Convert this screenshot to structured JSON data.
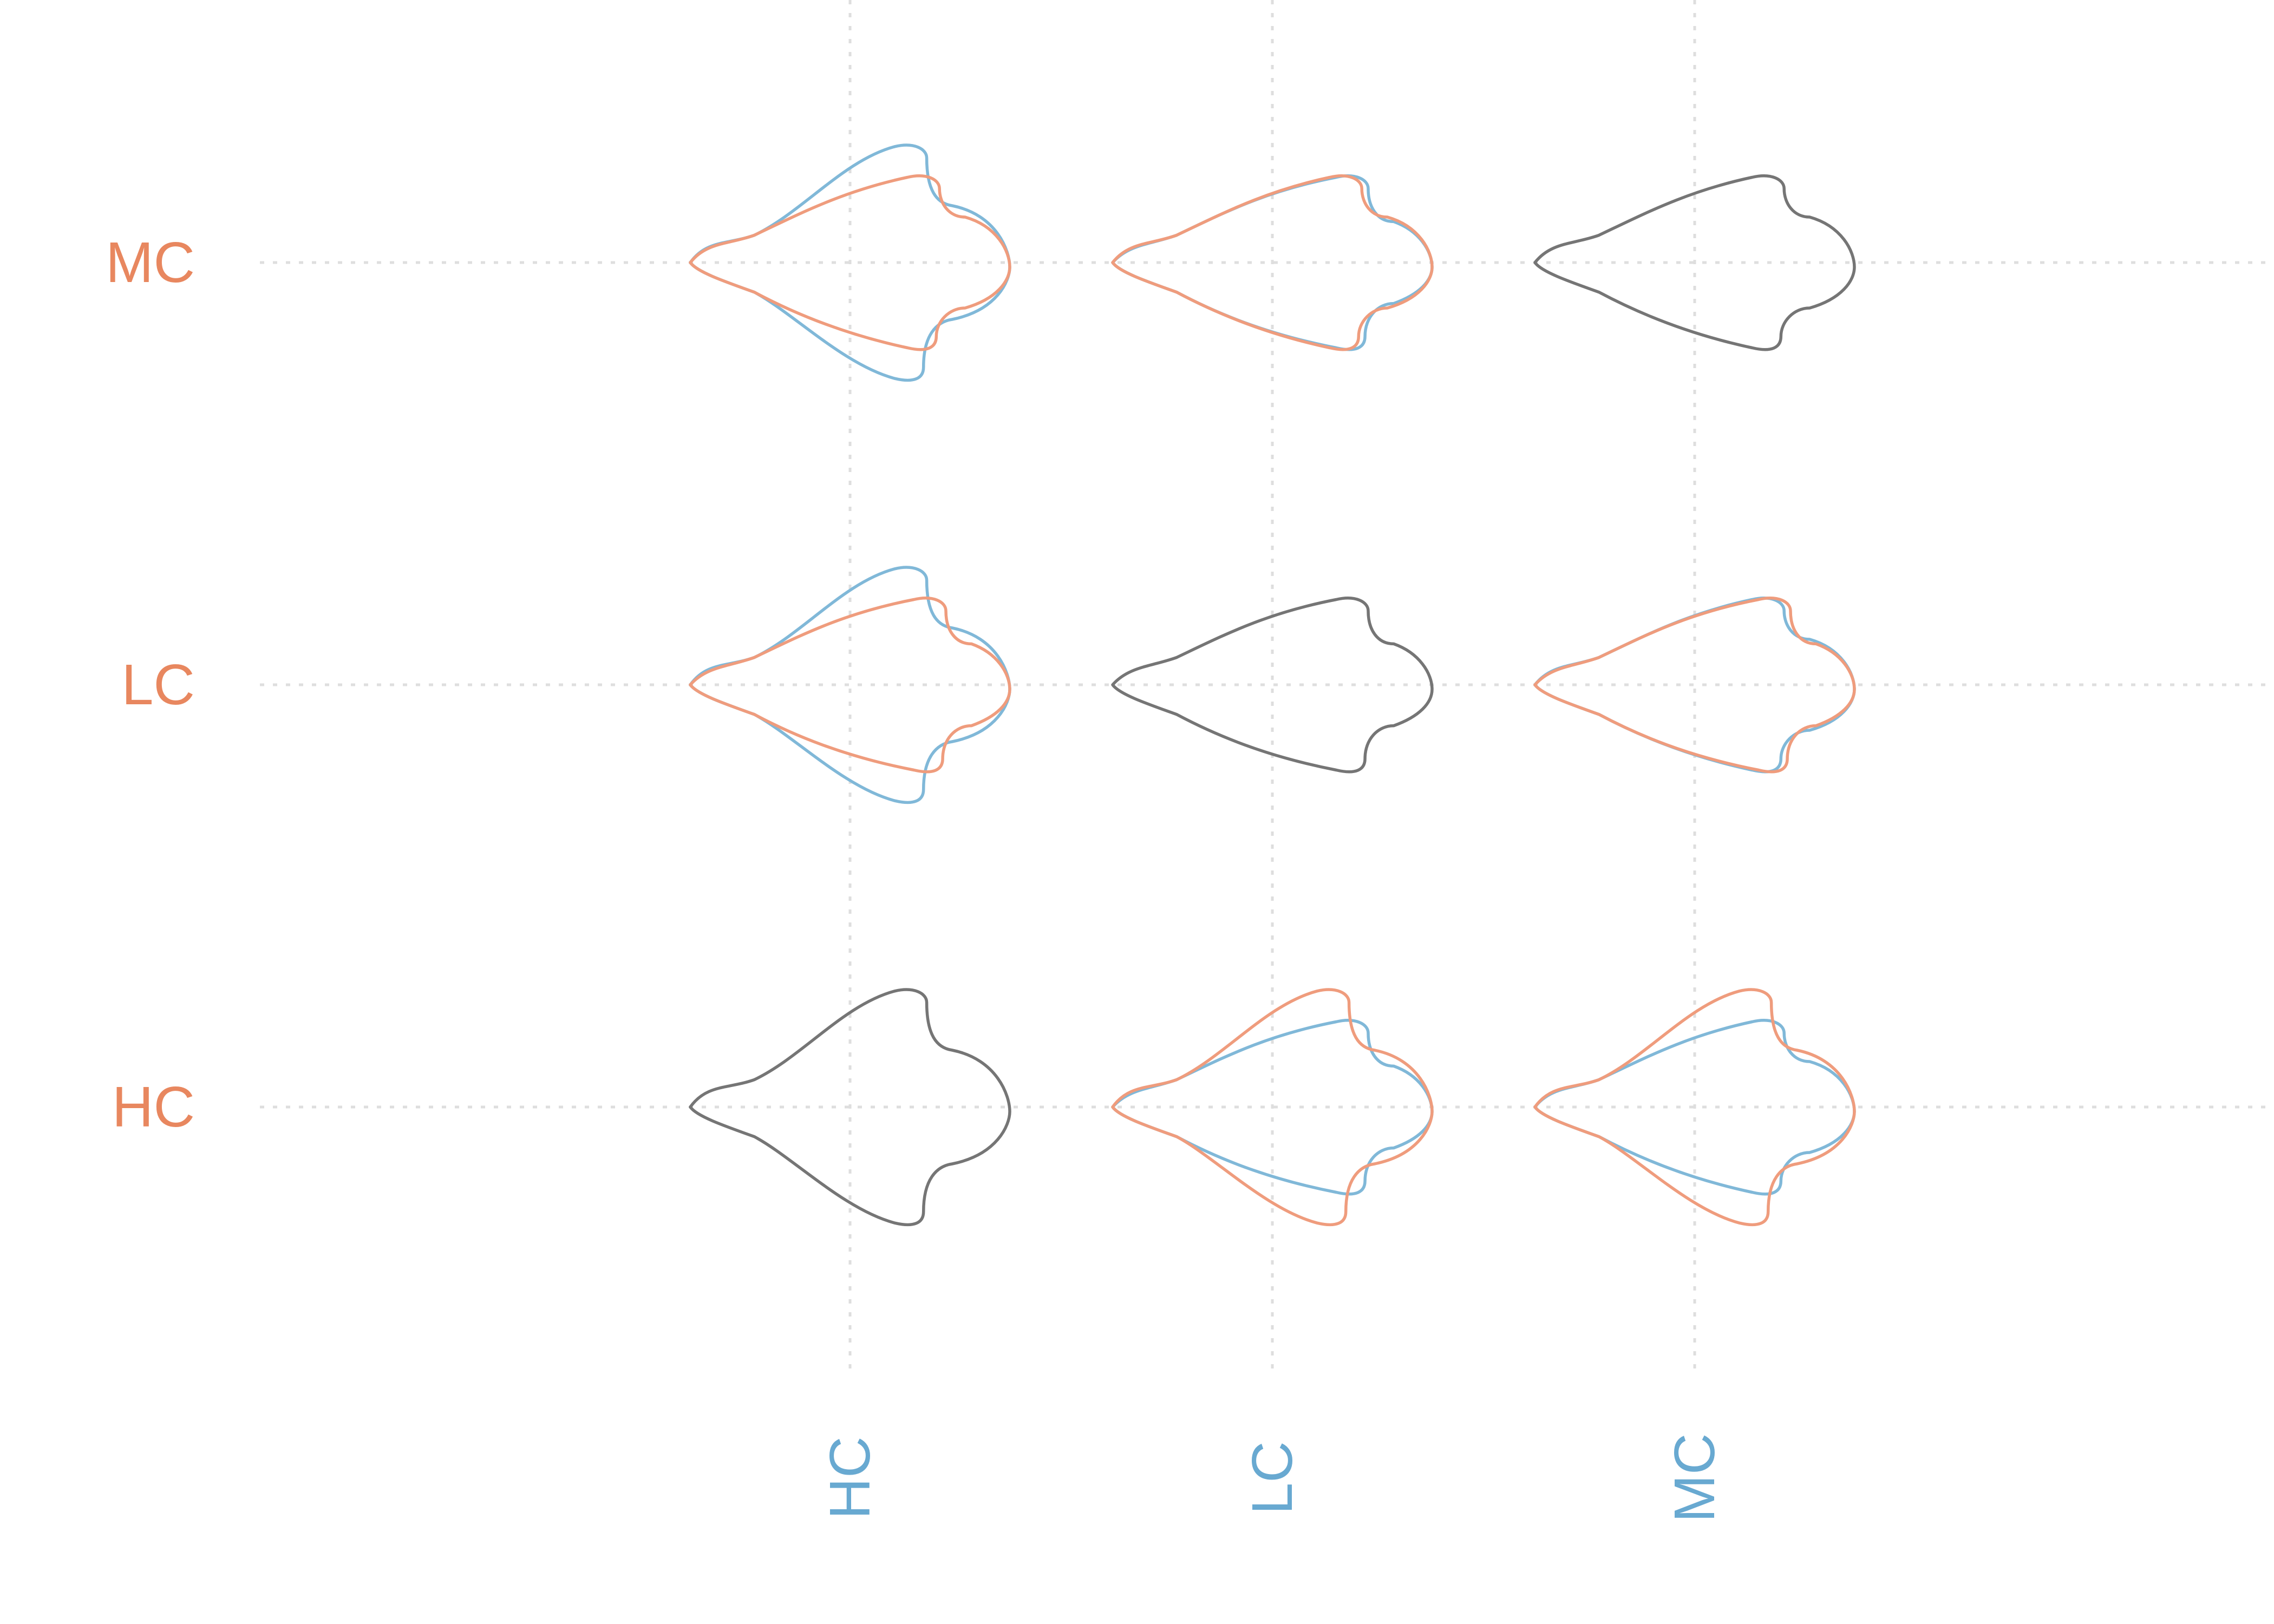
{
  "chart_data": {
    "type": "scatter",
    "description_free": true,
    "title": "",
    "xlabel": "",
    "ylabel": "",
    "x_categories": [
      "HC",
      "LC",
      "MC"
    ],
    "y_categories": [
      "HC",
      "LC",
      "MC"
    ],
    "grid": true,
    "colors": {
      "row_label": "#e8875f",
      "col_label": "#68a9d1",
      "mean_shape": "#757575",
      "row_group_outline": "#ef9c7d",
      "col_group_outline": "#80b8d8",
      "grid": "#dedede"
    },
    "shapes": {
      "HC": {
        "width": 1.0,
        "tail_len": 0.48,
        "shoulder_h": 0.68,
        "notch_x": 0.72,
        "notch_h": 0.28,
        "base_h": 0.25,
        "tip_bulge": 0.05
      },
      "LC": {
        "width": 1.0,
        "tail_len": 0.55,
        "shoulder_h": 0.5,
        "notch_x": 0.78,
        "notch_h": 0.2,
        "base_h": 0.18,
        "tip_bulge": 0.03
      },
      "MC": {
        "width": 1.0,
        "tail_len": 0.55,
        "shoulder_h": 0.5,
        "notch_x": 0.76,
        "notch_h": 0.22,
        "base_h": 0.2,
        "tip_bulge": 0.04
      }
    },
    "cells": [
      {
        "row": "MC",
        "col": "HC",
        "outlines": [
          "col",
          "row"
        ]
      },
      {
        "row": "MC",
        "col": "LC",
        "outlines": [
          "col",
          "row"
        ]
      },
      {
        "row": "MC",
        "col": "MC",
        "outlines": [
          "mean"
        ]
      },
      {
        "row": "LC",
        "col": "HC",
        "outlines": [
          "col",
          "row"
        ]
      },
      {
        "row": "LC",
        "col": "LC",
        "outlines": [
          "mean"
        ]
      },
      {
        "row": "LC",
        "col": "MC",
        "outlines": [
          "col",
          "row"
        ]
      },
      {
        "row": "HC",
        "col": "HC",
        "outlines": [
          "mean"
        ]
      },
      {
        "row": "HC",
        "col": "LC",
        "outlines": [
          "col",
          "row"
        ]
      },
      {
        "row": "HC",
        "col": "MC",
        "outlines": [
          "col",
          "row"
        ]
      }
    ]
  }
}
